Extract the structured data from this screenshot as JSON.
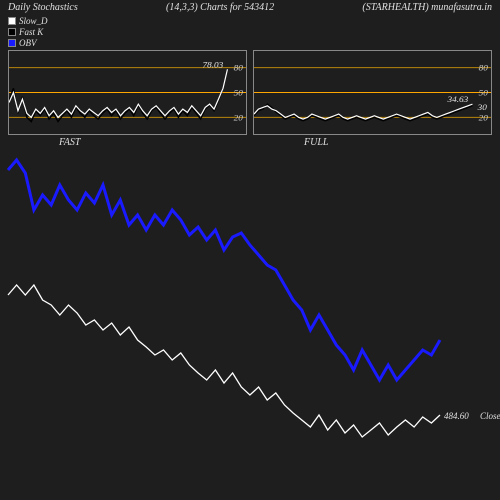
{
  "header": {
    "title": "Daily Stochastics",
    "params": "(14,3,3) Charts for 543412",
    "subtitle": "(STARHEALTH) munafasutra.in"
  },
  "legend": {
    "slow_d": {
      "label": "Slow_D",
      "color": "#ffffff"
    },
    "fast_k": {
      "label": "Fast K",
      "color": "#000000"
    },
    "obv": {
      "label": "OBV",
      "color": "#1a1aff"
    }
  },
  "colors": {
    "background": "#1e1e1e",
    "panel_border": "#888888",
    "grid_line_80": "#b8860b",
    "grid_line_50": "#ffa500",
    "grid_line_20": "#b8860b",
    "line_white": "#ffffff",
    "line_black": "#000000",
    "line_blue": "#1a1aff",
    "text": "#e0e0e0"
  },
  "fast_panel": {
    "label": "FAST",
    "end_value": "78.03",
    "y_ticks": [
      "80",
      "50",
      "20"
    ],
    "grid_y": {
      "80": 0.2,
      "50": 0.5,
      "20": 0.8
    },
    "series_black": [
      40,
      55,
      25,
      45,
      20,
      15,
      28,
      22,
      30,
      18,
      25,
      15,
      22,
      28,
      20,
      32,
      25,
      20,
      28,
      22,
      18,
      25,
      30,
      22,
      28,
      18,
      25,
      30,
      22,
      35,
      25,
      18,
      28,
      32,
      25,
      18,
      25,
      30,
      20,
      28,
      22,
      32,
      25,
      18,
      30,
      35,
      28,
      40,
      55,
      78
    ],
    "series_white": [
      38,
      50,
      28,
      42,
      25,
      20,
      30,
      25,
      32,
      22,
      28,
      20,
      25,
      30,
      24,
      34,
      28,
      24,
      30,
      26,
      22,
      28,
      32,
      26,
      30,
      22,
      28,
      32,
      26,
      36,
      28,
      22,
      30,
      34,
      28,
      22,
      28,
      32,
      24,
      30,
      26,
      34,
      28,
      22,
      32,
      36,
      30,
      42,
      55,
      78
    ]
  },
  "full_panel": {
    "label": "FULL",
    "end_value": "34.63",
    "end_value2": "30",
    "y_ticks": [
      "80",
      "50",
      "20"
    ],
    "grid_y": {
      "80": 0.2,
      "50": 0.5,
      "20": 0.8
    },
    "series_black": [
      22,
      28,
      30,
      36,
      32,
      26,
      22,
      18,
      20,
      22,
      18,
      16,
      18,
      22,
      20,
      18,
      16,
      18,
      20,
      22,
      18,
      16,
      18,
      20,
      18,
      16,
      18,
      20,
      18,
      16,
      18,
      20,
      22,
      20,
      18,
      16,
      18,
      20,
      22,
      24,
      20,
      18,
      20,
      22,
      24,
      26,
      28,
      30,
      32,
      34
    ],
    "series_white": [
      24,
      30,
      32,
      34,
      30,
      28,
      24,
      20,
      22,
      24,
      20,
      18,
      20,
      24,
      22,
      20,
      18,
      20,
      22,
      24,
      20,
      18,
      20,
      22,
      20,
      18,
      20,
      22,
      20,
      18,
      20,
      22,
      24,
      22,
      20,
      18,
      20,
      22,
      24,
      26,
      22,
      20,
      22,
      24,
      26,
      28,
      30,
      32,
      34,
      36
    ]
  },
  "main_chart": {
    "close_label": "Close",
    "close_value": "484.60",
    "obv_series": [
      15,
      5,
      18,
      55,
      40,
      50,
      30,
      45,
      55,
      38,
      48,
      30,
      60,
      45,
      70,
      60,
      75,
      60,
      70,
      55,
      65,
      80,
      72,
      85,
      75,
      95,
      82,
      78,
      90,
      100,
      110,
      115,
      130,
      145,
      155,
      175,
      160,
      175,
      190,
      200,
      215,
      195,
      210,
      225,
      210,
      225,
      215,
      205,
      195,
      200,
      185
    ],
    "close_series": [
      140,
      130,
      140,
      130,
      145,
      150,
      160,
      150,
      158,
      170,
      165,
      175,
      168,
      180,
      172,
      185,
      192,
      200,
      195,
      205,
      198,
      210,
      218,
      225,
      215,
      228,
      218,
      232,
      240,
      232,
      245,
      238,
      250,
      258,
      265,
      272,
      260,
      275,
      265,
      278,
      270,
      282,
      275,
      268,
      280,
      272,
      265,
      272,
      262,
      268,
      260
    ]
  }
}
